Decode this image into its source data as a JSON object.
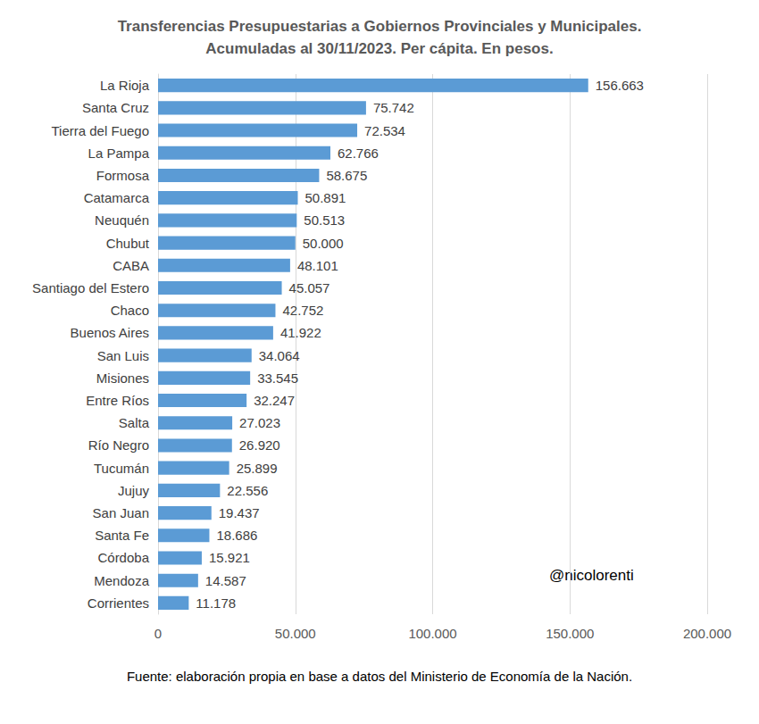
{
  "chart_data": {
    "type": "bar",
    "orientation": "horizontal",
    "title": "Transferencias Presupuestarias a Gobiernos Provinciales y Municipales.\nAcumuladas al 30/11/2023. Per cápita. En pesos.",
    "categories": [
      "La Rioja",
      "Santa Cruz",
      "Tierra del Fuego",
      "La Pampa",
      "Formosa",
      "Catamarca",
      "Neuquén",
      "Chubut",
      "CABA",
      "Santiago del Estero",
      "Chaco",
      "Buenos Aires",
      "San Luis",
      "Misiones",
      "Entre Ríos",
      "Salta",
      "Río Negro",
      "Tucumán",
      "Jujuy",
      "San Juan",
      "Santa Fe",
      "Córdoba",
      "Mendoza",
      "Corrientes"
    ],
    "values": [
      156663,
      75742,
      72534,
      62766,
      58675,
      50891,
      50513,
      50000,
      48101,
      45057,
      42752,
      41922,
      34064,
      33545,
      32247,
      27023,
      26920,
      25899,
      22556,
      19437,
      18686,
      15921,
      14587,
      11178
    ],
    "value_labels": [
      "156.663",
      "75.742",
      "72.534",
      "62.766",
      "58.675",
      "50.891",
      "50.513",
      "50.000",
      "48.101",
      "45.057",
      "42.752",
      "41.922",
      "34.064",
      "33.545",
      "32.247",
      "27.023",
      "26.920",
      "25.899",
      "22.556",
      "19.437",
      "18.686",
      "15.921",
      "14.587",
      "11.178"
    ],
    "data_labels": true,
    "color": "#5b9bd5",
    "xlim": [
      0,
      200000
    ],
    "xticks": [
      0,
      {
        "value": 50000,
        "label": "50.000"
      },
      {
        "value": 100000,
        "label": "100.000"
      },
      {
        "value": 150000,
        "label": "150.000"
      },
      {
        "value": 200000,
        "label": "200.000"
      }
    ],
    "grid": true,
    "annotations": [
      "@nicolorenti"
    ],
    "source": "Fuente: elaboración propia en base a datos del Ministerio de Economía de la Nación."
  }
}
